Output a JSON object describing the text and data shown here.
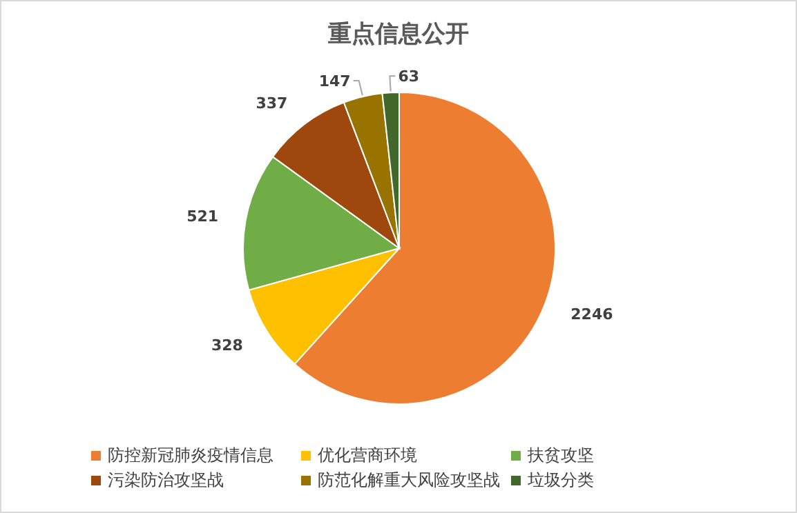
{
  "chart_data": {
    "type": "pie",
    "title": "重点信息公开",
    "categories": [
      "防控新冠肺炎疫情信息",
      "优化营商环境",
      "扶贫攻坚",
      "污染防治攻坚战",
      "防范化解重大风险攻坚战",
      "垃圾分类"
    ],
    "values": [
      2246,
      328,
      521,
      337,
      147,
      63
    ],
    "colors": [
      "#ed7d31",
      "#ffc000",
      "#70ad47",
      "#9e480e",
      "#997300",
      "#43682b"
    ],
    "data_labels": true,
    "legend": "bottom"
  }
}
